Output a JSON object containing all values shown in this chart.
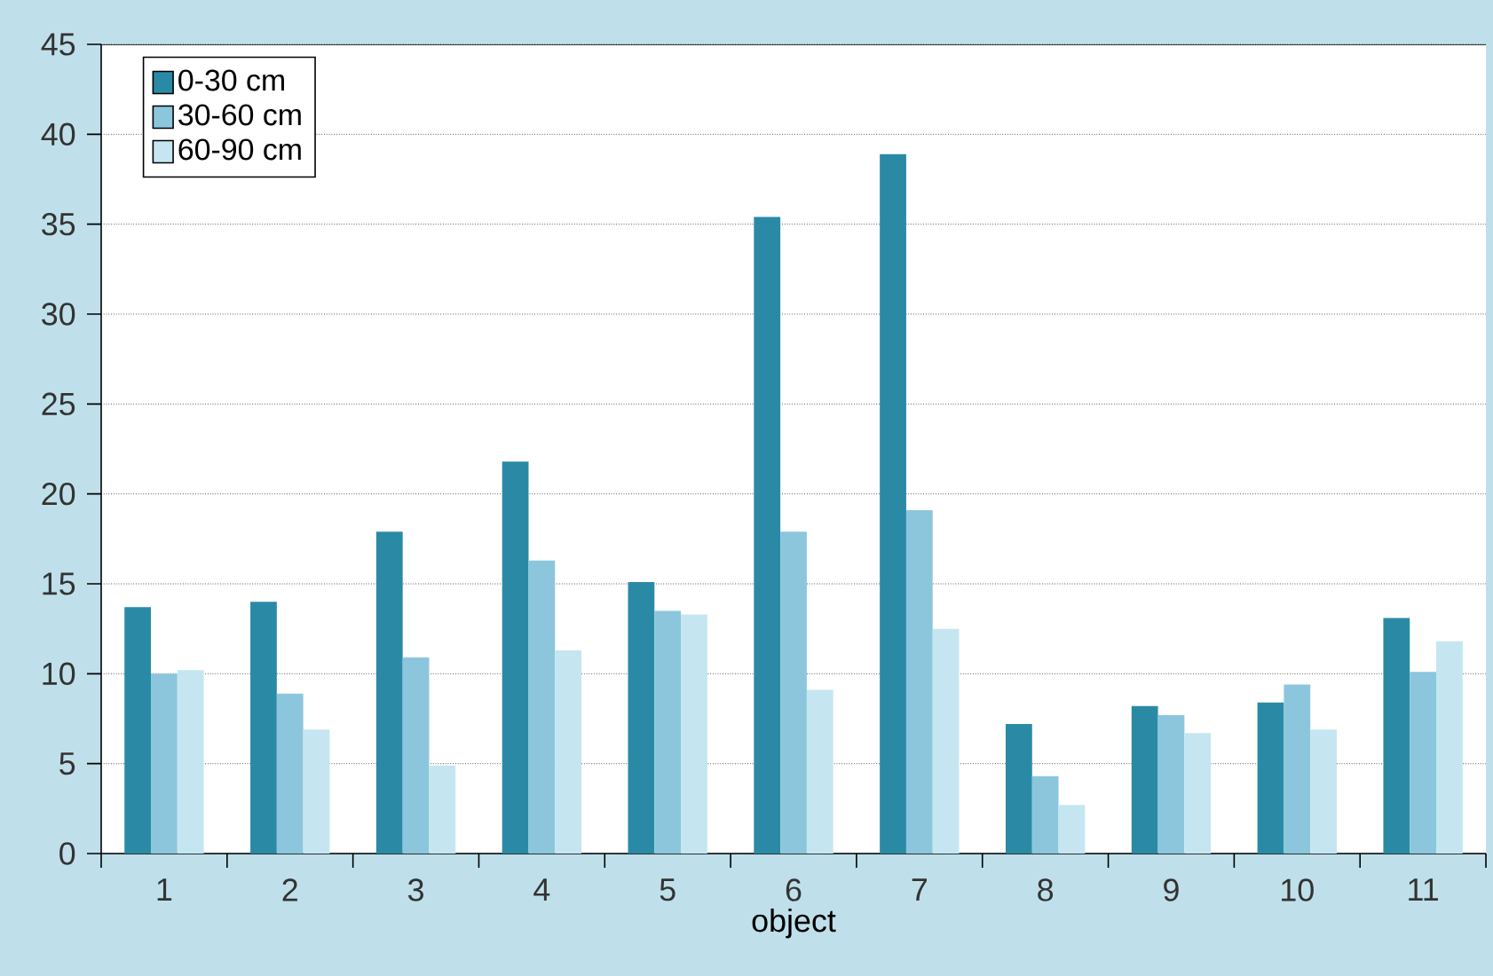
{
  "chart_data": {
    "type": "bar",
    "xlabel": "object",
    "categories": [
      "1",
      "2",
      "3",
      "4",
      "5",
      "6",
      "7",
      "8",
      "9",
      "10",
      "11"
    ],
    "series": [
      {
        "name": "0-30 cm",
        "color": "#2a8aa6",
        "values": [
          13.7,
          14.0,
          17.9,
          21.8,
          15.1,
          35.4,
          38.9,
          7.2,
          8.2,
          8.4,
          13.1
        ]
      },
      {
        "name": "30-60 cm",
        "color": "#8cc6dc",
        "values": [
          10.0,
          8.9,
          10.9,
          16.3,
          13.5,
          17.9,
          19.1,
          4.3,
          7.7,
          9.4,
          10.1
        ]
      },
      {
        "name": "60-90 cm",
        "color": "#c5e6f1",
        "values": [
          10.2,
          6.9,
          4.9,
          11.3,
          13.3,
          9.1,
          12.5,
          2.7,
          6.7,
          6.9,
          11.8
        ]
      }
    ],
    "ylim": [
      0,
      45
    ],
    "yticks": [
      0,
      5,
      10,
      15,
      20,
      25,
      30,
      35,
      40,
      45
    ],
    "grid": "y",
    "legend": "top left"
  }
}
